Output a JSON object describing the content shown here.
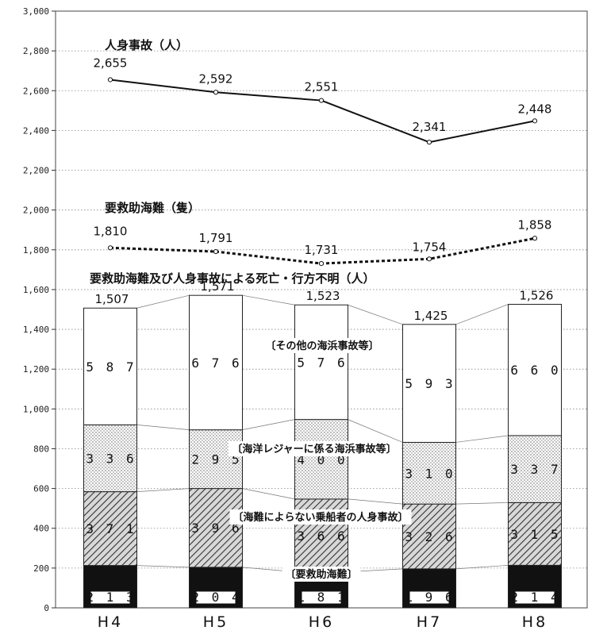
{
  "chart_data": {
    "type": "stacked-bar-with-lines",
    "categories": [
      "H4",
      "H5",
      "H6",
      "H7",
      "H8"
    ],
    "y_ticks": [
      "0",
      "200",
      "400",
      "600",
      "800",
      "1,000",
      "1,200",
      "1,400",
      "1,600",
      "1,800",
      "2,000",
      "2,200",
      "2,400",
      "2,600",
      "2,800",
      "3,000"
    ],
    "ylim": [
      0,
      3000
    ],
    "lines": [
      {
        "name": "人身事故（人）",
        "values": [
          2655,
          2592,
          2551,
          2341,
          2448
        ],
        "labels": [
          "2,655",
          "2,592",
          "2,551",
          "2,341",
          "2,448"
        ],
        "style": "solid"
      },
      {
        "name": "要救助海難（隻）",
        "values": [
          1810,
          1791,
          1731,
          1754,
          1858
        ],
        "labels": [
          "1,810",
          "1,791",
          "1,731",
          "1,754",
          "1,858"
        ],
        "style": "dotted"
      }
    ],
    "stack_title": "要救助海難及び人身事故による死亡・行方不明（人）",
    "stack_series": [
      {
        "name": "要救助海難",
        "values": [
          213,
          204,
          181,
          196,
          214
        ],
        "labels": [
          "2 1 3",
          "2 0 4",
          "1 8 1",
          "1 9 6",
          "2 1 4"
        ],
        "fill": "#111111"
      },
      {
        "name": "海難によらない乗船者の人身事故",
        "values": [
          371,
          396,
          366,
          326,
          315
        ],
        "labels": [
          "3 7 1",
          "3 9 6",
          "3 6 6",
          "3 2 6",
          "3 1 5"
        ],
        "fill": "hatch"
      },
      {
        "name": "海洋レジャーに係る海浜事故等",
        "values": [
          336,
          295,
          400,
          310,
          337
        ],
        "labels": [
          "3 3 6",
          "2 9 5",
          "4 0 0",
          "3 1 0",
          "3 3 7"
        ],
        "fill": "dots"
      },
      {
        "name": "その他の海浜事故等",
        "values": [
          587,
          676,
          576,
          593,
          660
        ],
        "labels": [
          "5 8 7",
          "6 7 6",
          "5 7 6",
          "5 9 3",
          "6 6 0"
        ],
        "fill": "#ffffff"
      }
    ],
    "totals": [
      "1,507",
      "1,571",
      "1,523",
      "1,425",
      "1,526"
    ],
    "category_labels": [
      "〔その他の海浜事故等〕",
      "〔海洋レジャーに係る海浜事故等〕",
      "〔海難によらない乗船者の人身事故〕",
      "〔要救助海難〕"
    ],
    "grid": true
  }
}
